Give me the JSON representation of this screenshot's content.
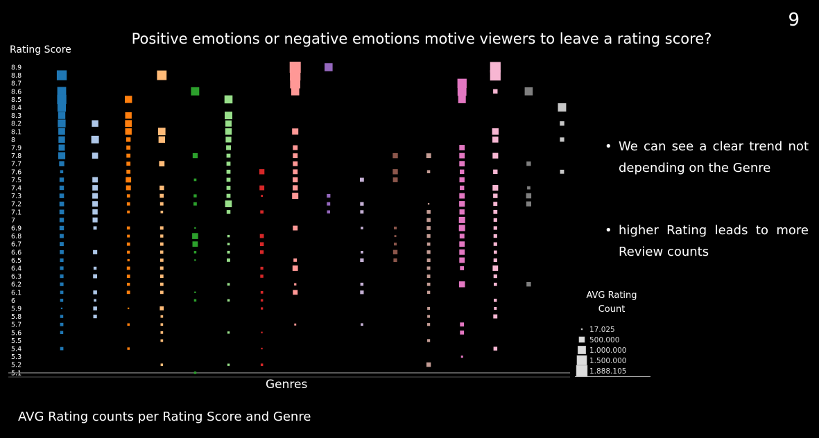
{
  "slide_number": "9",
  "bullets": [
    "We can see a clear trend not depending on the Genre",
    "higher Rating leads to more Review counts"
  ],
  "caption": "AVG Rating counts per Rating Score and Genre",
  "chart_data": {
    "type": "scatter",
    "title": "Positive emotions or negative emotions motive viewers to leave a rating score?",
    "xlabel": "Genres",
    "ylabel": "Rating Score",
    "y_ticks": [
      "8.9",
      "8.8",
      "8.7",
      "8.6",
      "8.5",
      "8.4",
      "8.3",
      "8.2",
      "8.1",
      "8",
      "7.9",
      "7.8",
      "7.7",
      "7.6",
      "7.5",
      "7.4",
      "7.3",
      "7.2",
      "7.1",
      "7",
      "6.9",
      "6.8",
      "6.7",
      "6.6",
      "6.5",
      "6.4",
      "6.3",
      "6.2",
      "6.1",
      "6",
      "5.9",
      "5.8",
      "5.7",
      "5.6",
      "5.5",
      "5.4",
      "5.3",
      "5.2",
      "5.1"
    ],
    "size_legend": {
      "title": "AVG Rating Count",
      "entries": [
        {
          "label": "17.025",
          "value": 17025
        },
        {
          "label": "500.000",
          "value": 500000
        },
        {
          "label": "1.000.000",
          "value": 1000000
        },
        {
          "label": "1.500.000",
          "value": 1500000
        },
        {
          "label": "1.888.105",
          "value": 1888105
        }
      ]
    },
    "series": [
      {
        "color": "#1f77b4",
        "points": [
          [
            8.8,
            1500000
          ],
          [
            8.6,
            1200000
          ],
          [
            8.5,
            1300000
          ],
          [
            8.4,
            1100000
          ],
          [
            8.3,
            800000
          ],
          [
            8.2,
            950000
          ],
          [
            8.1,
            700000
          ],
          [
            8.0,
            650000
          ],
          [
            7.9,
            600000
          ],
          [
            7.8,
            750000
          ],
          [
            7.7,
            400000
          ],
          [
            7.6,
            150000
          ],
          [
            7.5,
            300000
          ],
          [
            7.4,
            300000
          ],
          [
            7.3,
            320000
          ],
          [
            7.2,
            330000
          ],
          [
            7.1,
            330000
          ],
          [
            7.0,
            300000
          ],
          [
            6.9,
            300000
          ],
          [
            6.8,
            260000
          ],
          [
            6.7,
            260000
          ],
          [
            6.6,
            250000
          ],
          [
            6.5,
            200000
          ],
          [
            6.4,
            200000
          ],
          [
            6.3,
            200000
          ],
          [
            6.2,
            200000
          ],
          [
            6.1,
            160000
          ],
          [
            6.0,
            150000
          ],
          [
            5.9,
            40000
          ],
          [
            5.8,
            150000
          ],
          [
            5.7,
            170000
          ],
          [
            5.6,
            150000
          ],
          [
            5.4,
            160000
          ]
        ]
      },
      {
        "color": "#aec7e8",
        "points": [
          [
            8.2,
            650000
          ],
          [
            8.0,
            900000
          ],
          [
            7.8,
            550000
          ],
          [
            7.5,
            450000
          ],
          [
            7.4,
            450000
          ],
          [
            7.3,
            470000
          ],
          [
            7.2,
            470000
          ],
          [
            7.1,
            420000
          ],
          [
            7.0,
            380000
          ],
          [
            6.9,
            180000
          ],
          [
            6.6,
            270000
          ],
          [
            6.4,
            140000
          ],
          [
            6.3,
            250000
          ],
          [
            6.1,
            220000
          ],
          [
            6.0,
            100000
          ],
          [
            5.9,
            220000
          ],
          [
            5.8,
            200000
          ]
        ]
      },
      {
        "color": "#ff7f0e",
        "points": [
          [
            8.5,
            800000
          ],
          [
            8.3,
            650000
          ],
          [
            8.2,
            700000
          ],
          [
            8.1,
            650000
          ],
          [
            8.0,
            300000
          ],
          [
            7.9,
            260000
          ],
          [
            7.8,
            250000
          ],
          [
            7.7,
            250000
          ],
          [
            7.6,
            250000
          ],
          [
            7.5,
            450000
          ],
          [
            7.4,
            360000
          ],
          [
            7.3,
            160000
          ],
          [
            7.2,
            160000
          ],
          [
            7.1,
            120000
          ],
          [
            6.9,
            150000
          ],
          [
            6.8,
            120000
          ],
          [
            6.7,
            160000
          ],
          [
            6.6,
            130000
          ],
          [
            6.5,
            80000
          ],
          [
            6.4,
            170000
          ],
          [
            6.3,
            160000
          ],
          [
            6.2,
            140000
          ],
          [
            6.1,
            170000
          ],
          [
            5.9,
            40000
          ],
          [
            5.7,
            90000
          ],
          [
            5.4,
            90000
          ]
        ]
      },
      {
        "color": "#ffbb78",
        "points": [
          [
            8.8,
            1400000
          ],
          [
            8.1,
            850000
          ],
          [
            8.0,
            650000
          ],
          [
            7.7,
            450000
          ],
          [
            7.4,
            310000
          ],
          [
            7.3,
            240000
          ],
          [
            7.2,
            180000
          ],
          [
            7.1,
            100000
          ],
          [
            6.9,
            180000
          ],
          [
            6.8,
            140000
          ],
          [
            6.7,
            170000
          ],
          [
            6.6,
            150000
          ],
          [
            6.5,
            160000
          ],
          [
            6.4,
            180000
          ],
          [
            6.3,
            170000
          ],
          [
            6.2,
            170000
          ],
          [
            6.1,
            160000
          ],
          [
            5.9,
            240000
          ],
          [
            5.8,
            100000
          ],
          [
            5.7,
            100000
          ],
          [
            5.6,
            100000
          ],
          [
            5.5,
            100000
          ],
          [
            5.2,
            90000
          ]
        ]
      },
      {
        "color": "#2ca02c",
        "points": [
          [
            8.6,
            1050000
          ],
          [
            7.8,
            380000
          ],
          [
            7.5,
            100000
          ],
          [
            7.3,
            140000
          ],
          [
            7.2,
            170000
          ],
          [
            6.9,
            40000
          ],
          [
            6.8,
            550000
          ],
          [
            6.7,
            450000
          ],
          [
            6.6,
            90000
          ],
          [
            6.5,
            40000
          ],
          [
            6.1,
            40000
          ],
          [
            6.0,
            90000
          ],
          [
            5.1,
            90000
          ]
        ]
      },
      {
        "color": "#98df8a",
        "points": [
          [
            8.5,
            1000000
          ],
          [
            8.3,
            900000
          ],
          [
            8.2,
            600000
          ],
          [
            8.1,
            650000
          ],
          [
            8.0,
            500000
          ],
          [
            7.9,
            350000
          ],
          [
            7.8,
            250000
          ],
          [
            7.7,
            250000
          ],
          [
            7.6,
            250000
          ],
          [
            7.5,
            250000
          ],
          [
            7.4,
            250000
          ],
          [
            7.3,
            250000
          ],
          [
            7.2,
            700000
          ],
          [
            7.1,
            220000
          ],
          [
            6.8,
            90000
          ],
          [
            6.7,
            90000
          ],
          [
            6.6,
            110000
          ],
          [
            6.5,
            180000
          ],
          [
            6.2,
            100000
          ],
          [
            6.0,
            90000
          ],
          [
            5.6,
            80000
          ],
          [
            5.2,
            80000
          ]
        ]
      },
      {
        "color": "#d62728",
        "points": [
          [
            7.6,
            400000
          ],
          [
            7.4,
            350000
          ],
          [
            7.3,
            60000
          ],
          [
            7.1,
            160000
          ],
          [
            6.8,
            250000
          ],
          [
            6.7,
            220000
          ],
          [
            6.6,
            200000
          ],
          [
            6.4,
            130000
          ],
          [
            6.3,
            150000
          ],
          [
            6.1,
            100000
          ],
          [
            6.0,
            90000
          ],
          [
            5.9,
            80000
          ],
          [
            5.6,
            40000
          ],
          [
            5.4,
            40000
          ],
          [
            5.2,
            90000
          ]
        ]
      },
      {
        "color": "#ff9896",
        "points": [
          [
            8.9,
            1888105
          ],
          [
            8.8,
            1700000
          ],
          [
            8.7,
            1600000
          ],
          [
            8.6,
            1000000
          ],
          [
            8.1,
            600000
          ],
          [
            7.9,
            350000
          ],
          [
            7.8,
            350000
          ],
          [
            7.7,
            350000
          ],
          [
            7.6,
            350000
          ],
          [
            7.5,
            400000
          ],
          [
            7.4,
            400000
          ],
          [
            7.3,
            600000
          ],
          [
            6.9,
            350000
          ],
          [
            6.5,
            180000
          ],
          [
            6.4,
            450000
          ],
          [
            6.2,
            80000
          ],
          [
            6.1,
            350000
          ],
          [
            5.7,
            60000
          ]
        ]
      },
      {
        "color": "#9467bd",
        "points": [
          [
            8.9,
            1000000
          ],
          [
            7.3,
            200000
          ],
          [
            7.2,
            180000
          ],
          [
            7.1,
            150000
          ]
        ]
      },
      {
        "color": "#c5b0d5",
        "points": [
          [
            7.5,
            250000
          ],
          [
            7.2,
            200000
          ],
          [
            7.1,
            180000
          ],
          [
            6.9,
            100000
          ],
          [
            6.6,
            100000
          ],
          [
            6.5,
            200000
          ],
          [
            6.2,
            150000
          ],
          [
            6.1,
            200000
          ],
          [
            5.7,
            100000
          ]
        ]
      },
      {
        "color": "#8c564b",
        "points": [
          [
            7.8,
            400000
          ],
          [
            7.6,
            400000
          ],
          [
            7.5,
            350000
          ],
          [
            6.9,
            120000
          ],
          [
            6.8,
            60000
          ],
          [
            6.7,
            120000
          ],
          [
            6.6,
            300000
          ],
          [
            6.5,
            200000
          ]
        ]
      },
      {
        "color": "#c49c94",
        "points": [
          [
            7.8,
            350000
          ],
          [
            7.6,
            150000
          ],
          [
            7.2,
            40000
          ],
          [
            7.1,
            220000
          ],
          [
            7.0,
            230000
          ],
          [
            6.9,
            230000
          ],
          [
            6.8,
            200000
          ],
          [
            6.7,
            160000
          ],
          [
            6.6,
            200000
          ],
          [
            6.5,
            190000
          ],
          [
            6.4,
            180000
          ],
          [
            6.3,
            170000
          ],
          [
            6.2,
            160000
          ],
          [
            6.1,
            140000
          ],
          [
            5.9,
            120000
          ],
          [
            5.8,
            120000
          ],
          [
            5.7,
            130000
          ],
          [
            5.5,
            130000
          ],
          [
            5.2,
            300000
          ]
        ]
      },
      {
        "color": "#e377c2",
        "points": [
          [
            8.7,
            1300000
          ],
          [
            8.6,
            1200000
          ],
          [
            8.5,
            900000
          ],
          [
            7.9,
            450000
          ],
          [
            7.8,
            450000
          ],
          [
            7.7,
            450000
          ],
          [
            7.6,
            300000
          ],
          [
            7.5,
            400000
          ],
          [
            7.4,
            300000
          ],
          [
            7.3,
            450000
          ],
          [
            7.2,
            500000
          ],
          [
            7.1,
            400000
          ],
          [
            7.0,
            600000
          ],
          [
            6.9,
            600000
          ],
          [
            6.8,
            350000
          ],
          [
            6.7,
            450000
          ],
          [
            6.6,
            450000
          ],
          [
            6.5,
            450000
          ],
          [
            6.4,
            250000
          ],
          [
            6.2,
            550000
          ],
          [
            5.7,
            250000
          ],
          [
            5.6,
            250000
          ],
          [
            5.3,
            70000
          ]
        ]
      },
      {
        "color": "#f7b6d2",
        "points": [
          [
            8.9,
            1700000
          ],
          [
            8.8,
            1700000
          ],
          [
            8.6,
            300000
          ],
          [
            8.1,
            650000
          ],
          [
            8.0,
            550000
          ],
          [
            7.8,
            480000
          ],
          [
            7.6,
            300000
          ],
          [
            7.4,
            480000
          ],
          [
            7.3,
            300000
          ],
          [
            7.2,
            260000
          ],
          [
            7.1,
            250000
          ],
          [
            7.0,
            200000
          ],
          [
            6.9,
            200000
          ],
          [
            6.8,
            200000
          ],
          [
            6.7,
            200000
          ],
          [
            6.6,
            160000
          ],
          [
            6.5,
            200000
          ],
          [
            6.4,
            450000
          ],
          [
            6.3,
            200000
          ],
          [
            6.2,
            160000
          ],
          [
            6.0,
            150000
          ],
          [
            5.9,
            120000
          ],
          [
            5.8,
            260000
          ],
          [
            5.4,
            220000
          ]
        ]
      },
      {
        "color": "#7f7f7f",
        "points": [
          [
            8.6,
            1000000
          ],
          [
            7.7,
            300000
          ],
          [
            7.4,
            160000
          ],
          [
            7.3,
            420000
          ],
          [
            7.2,
            380000
          ],
          [
            6.2,
            300000
          ]
        ]
      },
      {
        "color": "#c7c7c7",
        "points": [
          [
            8.4,
            1050000
          ],
          [
            8.2,
            300000
          ],
          [
            8.0,
            280000
          ],
          [
            7.6,
            250000
          ]
        ]
      }
    ]
  }
}
